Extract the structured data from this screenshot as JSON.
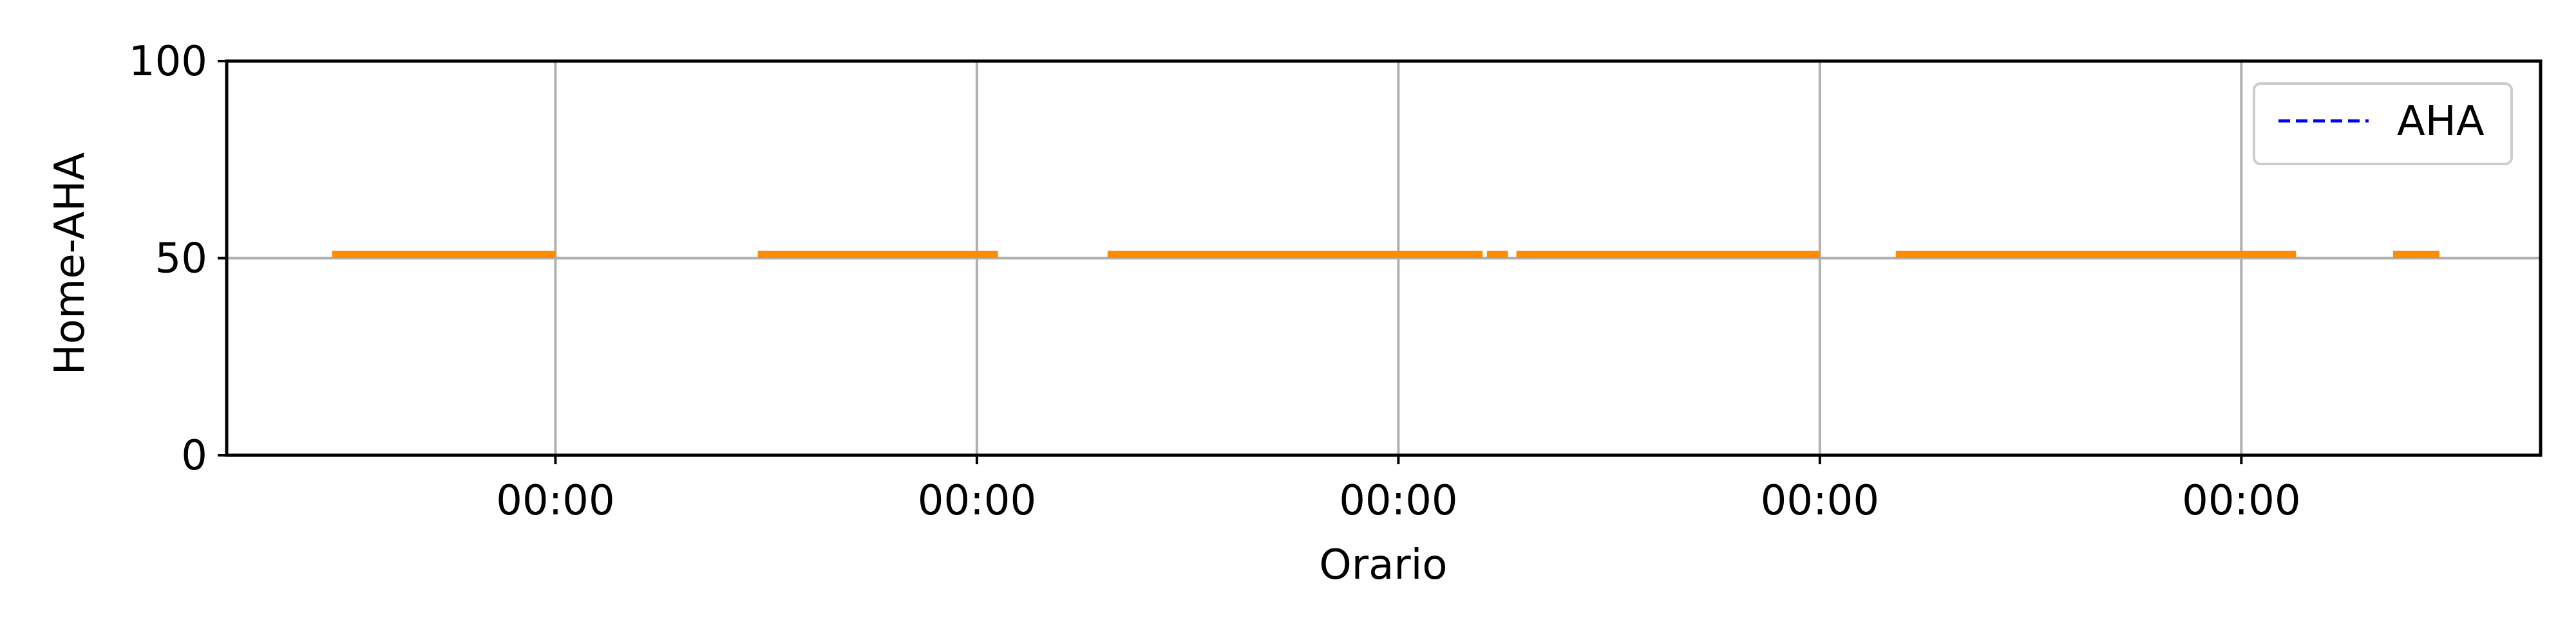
{
  "chart_data": {
    "type": "line",
    "title": "",
    "xlabel": "Orario",
    "ylabel": "Home-AHA",
    "ylim": [
      0,
      100
    ],
    "yticks": [
      0,
      50,
      100
    ],
    "xlim": [
      -0.78,
      4.71
    ],
    "xticks": [
      0,
      1,
      2,
      3,
      4
    ],
    "xtick_labels": [
      "00:00",
      "00:00",
      "00:00",
      "00:00",
      "00:00"
    ],
    "grid": true,
    "legend": {
      "position": "top-right",
      "entries": [
        "AHA"
      ]
    },
    "series": [
      {
        "name": "AHA",
        "style": "dashed",
        "color": "#0000ff",
        "segments": [
          {
            "x": [
              -0.78,
              4.71
            ],
            "y": [
              100,
              100
            ]
          }
        ]
      },
      {
        "name": "",
        "style": "solid",
        "color": "#ff8c00",
        "segments": [
          {
            "x": [
              -0.53,
              0.0
            ],
            "y": [
              51,
              51
            ]
          },
          {
            "x": [
              0.48,
              1.05
            ],
            "y": [
              51,
              51
            ]
          },
          {
            "x": [
              1.31,
              2.2
            ],
            "y": [
              51,
              51
            ]
          },
          {
            "x": [
              2.21,
              2.26
            ],
            "y": [
              51,
              51
            ]
          },
          {
            "x": [
              2.28,
              3.0
            ],
            "y": [
              51,
              51
            ]
          },
          {
            "x": [
              3.18,
              4.13
            ],
            "y": [
              51,
              51
            ]
          },
          {
            "x": [
              4.36,
              4.47
            ],
            "y": [
              51,
              51
            ]
          }
        ]
      }
    ]
  }
}
